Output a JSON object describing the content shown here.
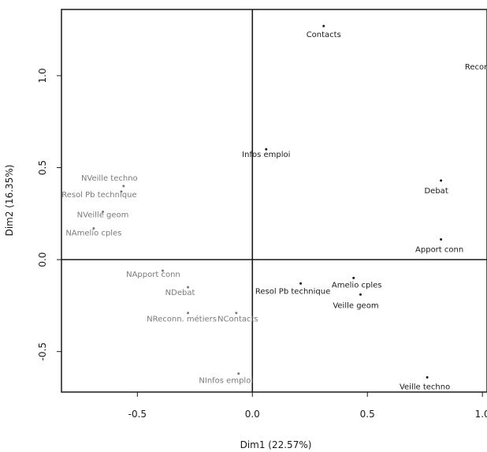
{
  "chart_data": {
    "type": "scatter",
    "xlabel": "Dim1 (22.57%)",
    "ylabel": "Dim2 (16.35%)",
    "xlim": [
      -0.83,
      1.02
    ],
    "ylim": [
      -0.72,
      1.36
    ],
    "xticks": [
      "-0.5",
      "0.0",
      "0.5",
      "1.0"
    ],
    "xtick_values": [
      -0.5,
      0.0,
      0.5,
      1.0
    ],
    "yticks": [
      "-0.5",
      "0.0",
      "0.5",
      "1.0"
    ],
    "ytick_values": [
      -0.5,
      0.0,
      0.5,
      1.0
    ],
    "grid": false,
    "reference_lines": {
      "x": 0,
      "y": 0
    },
    "colors": {
      "active": "#1a1a1a",
      "supplementary": "#7a7a7a"
    },
    "series": [
      {
        "points": [
          {
            "label": "Contacts",
            "x": 0.31,
            "y": 1.27
          },
          {
            "label": "Reconn. métiers",
            "x": 1.07,
            "y": 1.09
          },
          {
            "label": "Infos emploi",
            "x": 0.06,
            "y": 0.6
          },
          {
            "label": "Debat",
            "x": 0.82,
            "y": 0.43
          },
          {
            "label": "Apport conn",
            "x": 0.82,
            "y": 0.11
          },
          {
            "label": "Amelio cples",
            "x": 0.44,
            "y": -0.1
          },
          {
            "label": "Resol Pb technique",
            "x": 0.21,
            "y": -0.13
          },
          {
            "label": "Veille geom",
            "x": 0.47,
            "y": -0.19
          },
          {
            "label": "Veille techno",
            "x": 0.76,
            "y": -0.64
          }
        ]
      },
      {
        "points": [
          {
            "label": "NVeille techno",
            "x": -0.56,
            "y": 0.4
          },
          {
            "label": "Resol Pb technique",
            "x": -0.57,
            "y": 0.37
          },
          {
            "label": "NVeille geom",
            "x": -0.65,
            "y": 0.26
          },
          {
            "label": "NAmelio cples",
            "x": -0.69,
            "y": 0.17
          },
          {
            "label": "NApport conn",
            "x": -0.39,
            "y": -0.06
          },
          {
            "label": "NDebat",
            "x": -0.28,
            "y": -0.15
          },
          {
            "label": "NReconn. métiers",
            "x": -0.28,
            "y": -0.29
          },
          {
            "label": "NContacts",
            "x": -0.07,
            "y": -0.29
          },
          {
            "label": "NInfos emploi",
            "x": -0.06,
            "y": -0.62
          }
        ]
      }
    ]
  }
}
